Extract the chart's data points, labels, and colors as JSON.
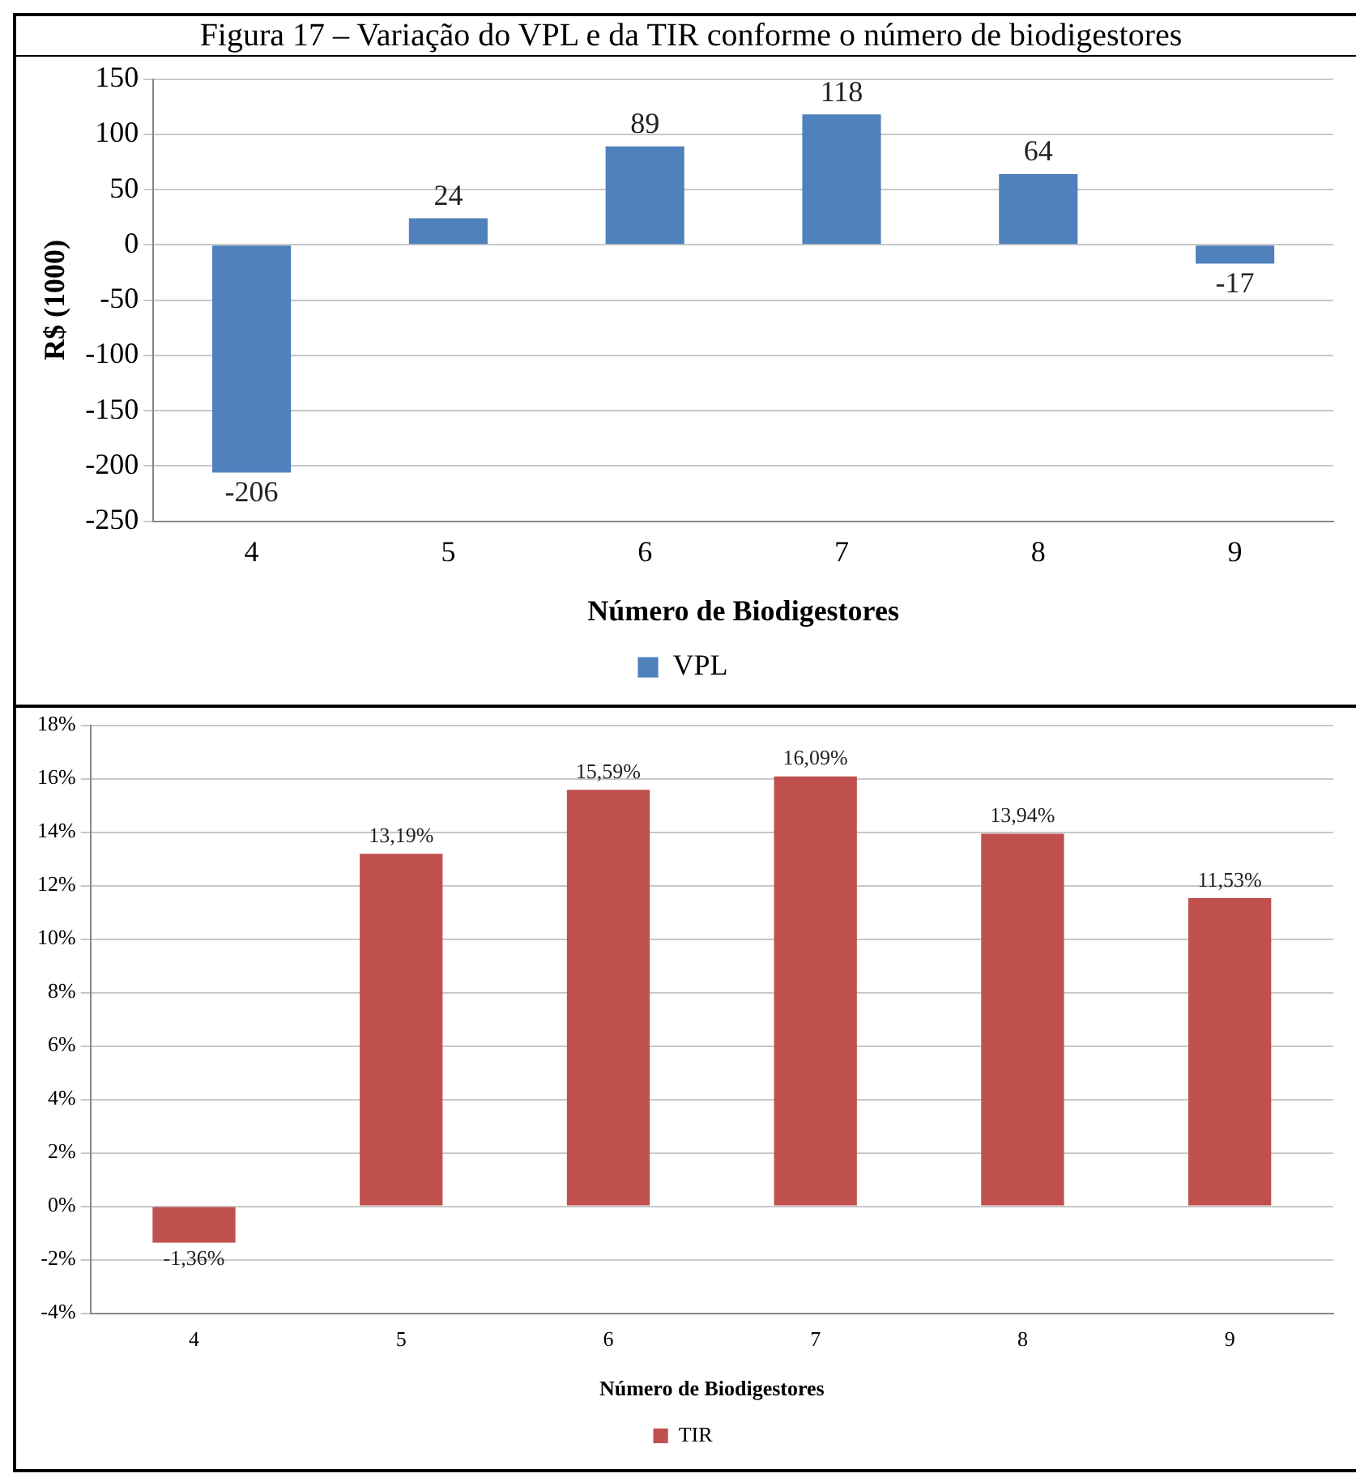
{
  "chart_data": [
    {
      "type": "bar",
      "title": "Figura 17 – Variação do VPL e da TIR conforme o número de biodigestores",
      "xlabel": "Número de Biodigestores",
      "ylabel": "R$ (1000)",
      "categories": [
        "4",
        "5",
        "6",
        "7",
        "8",
        "9"
      ],
      "series": [
        {
          "name": "VPL",
          "color": "#4f81bd",
          "values": [
            -206,
            24,
            89,
            118,
            64,
            -17
          ]
        }
      ],
      "ylim": [
        -250,
        150
      ],
      "yticks": [
        -250,
        -200,
        -150,
        -100,
        -50,
        0,
        50,
        100,
        150
      ],
      "grid": "y",
      "legend": "bottom",
      "data_labels": true
    },
    {
      "type": "bar",
      "xlabel": "Número de Biodigestores",
      "categories": [
        "4",
        "5",
        "6",
        "7",
        "8",
        "9"
      ],
      "series": [
        {
          "name": "TIR",
          "color": "#c0504d",
          "values": [
            -1.36,
            13.19,
            15.59,
            16.09,
            13.94,
            11.53
          ],
          "value_labels": [
            "-1,36%",
            "13,19%",
            "15,59%",
            "16,09%",
            "13,94%",
            "11,53%"
          ]
        }
      ],
      "ylim": [
        -4,
        18
      ],
      "yticks": [
        {
          "value": -4,
          "label": "-4%"
        },
        {
          "value": -2,
          "label": "-2%"
        },
        {
          "value": 0,
          "label": "0%"
        },
        {
          "value": 2,
          "label": "2%"
        },
        {
          "value": 4,
          "label": "4%"
        },
        {
          "value": 6,
          "label": "6%"
        },
        {
          "value": 8,
          "label": "8%"
        },
        {
          "value": 10,
          "label": "10%"
        },
        {
          "value": 12,
          "label": "12%"
        },
        {
          "value": 14,
          "label": "14%"
        },
        {
          "value": 16,
          "label": "16%"
        },
        {
          "value": 18,
          "label": "18%"
        }
      ],
      "grid": "y",
      "legend": "bottom"
    }
  ]
}
